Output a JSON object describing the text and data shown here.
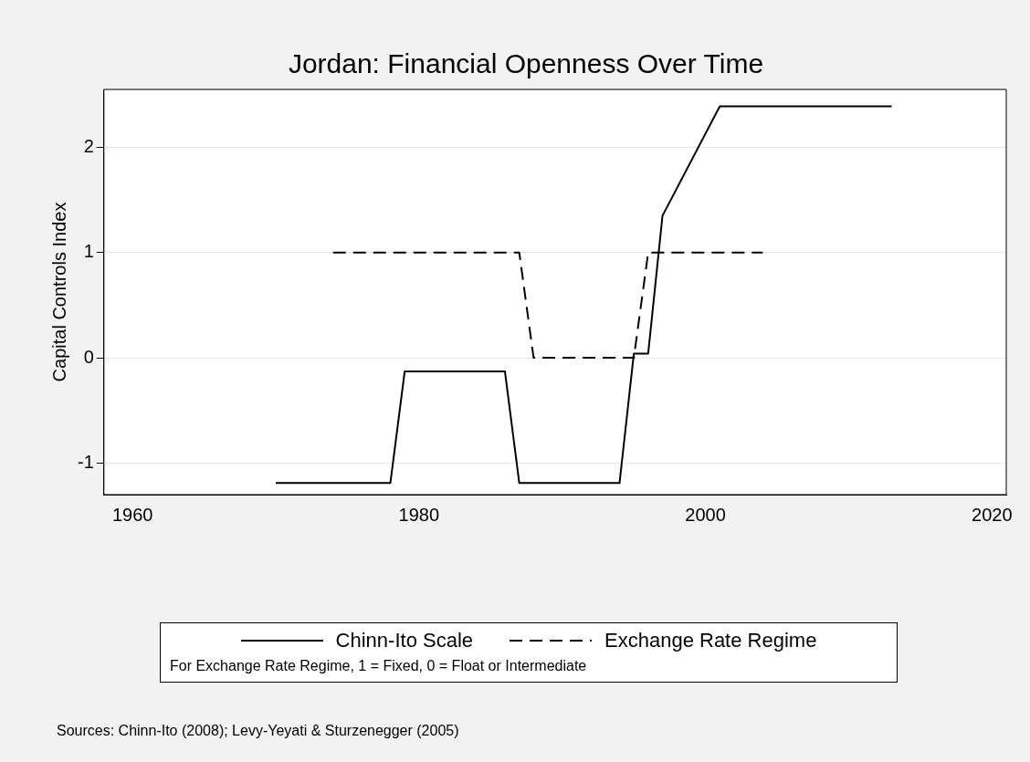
{
  "chart_data": {
    "type": "line",
    "title": "Jordan: Financial Openness Over Time",
    "ylabel": "Capital Controls Index",
    "xlim": [
      1958,
      2021
    ],
    "xticks": [
      1960,
      1980,
      2000,
      2020
    ],
    "ylim": [
      -1.3,
      2.55
    ],
    "yticks": [
      -1,
      0,
      1,
      2
    ],
    "grid": "y",
    "legend": "bottom",
    "marker": "none",
    "series": [
      {
        "name": "Chinn-Ito Scale",
        "color": "#000000",
        "line_style": "solid",
        "x": [
          1970,
          1978,
          1979,
          1986,
          1987,
          1994,
          1995,
          1996,
          1997,
          2001,
          2013
        ],
        "values": [
          -1.19,
          -1.19,
          -0.13,
          -0.13,
          -1.19,
          -1.19,
          0.04,
          0.04,
          1.35,
          2.39,
          2.39
        ]
      },
      {
        "name": "Exchange Rate Regime",
        "color": "#000000",
        "line_style": "dashed",
        "x": [
          1974,
          1987,
          1988,
          1995,
          1996,
          2004
        ],
        "values": [
          1,
          1,
          0,
          0,
          1,
          1
        ]
      }
    ],
    "annotations": [
      "For Exchange Rate Regime, 1 = Fixed, 0 = Float or Intermediate",
      "Sources: Chinn-Ito (2008); Levy-Yeyati & Sturzenegger (2005)"
    ]
  }
}
